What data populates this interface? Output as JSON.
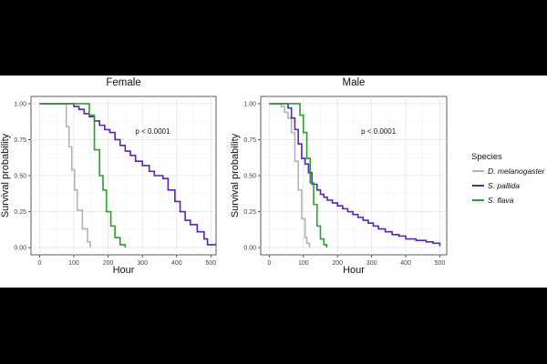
{
  "legend": {
    "title": "Species",
    "placement": "right",
    "entries": [
      {
        "label": "D. melanogaster",
        "color": "#b3b3b3"
      },
      {
        "label": "S. pallida",
        "color": "#5b23b5"
      },
      {
        "label": "S. flava",
        "color": "#2ca02c"
      }
    ]
  },
  "chart_data": [
    {
      "type": "line",
      "step": true,
      "title": "Female",
      "xlabel": "Hour",
      "ylabel": "Survival probability",
      "xlim": [
        -25,
        515
      ],
      "ylim": [
        -0.05,
        1.05
      ],
      "xticks": [
        0,
        100,
        200,
        300,
        400,
        500
      ],
      "yticks": [
        "0.00",
        "0.25",
        "0.50",
        "0.75",
        "1.00"
      ],
      "grid": true,
      "annotation": "p < 0.0001",
      "annotation_at": [
        330,
        0.79
      ],
      "series": [
        {
          "name": "D. melanogaster",
          "color": "#b3b3b3",
          "x": [
            0,
            70,
            78,
            86,
            94,
            102,
            110,
            125,
            140,
            148
          ],
          "y": [
            1.0,
            1.0,
            0.84,
            0.7,
            0.54,
            0.4,
            0.26,
            0.13,
            0.04,
            0.0
          ]
        },
        {
          "name": "S. pallida",
          "color": "#5b23b5",
          "x": [
            0,
            85,
            100,
            115,
            130,
            145,
            160,
            175,
            190,
            205,
            220,
            235,
            250,
            265,
            280,
            300,
            320,
            335,
            360,
            375,
            395,
            410,
            425,
            440,
            460,
            480,
            490,
            515
          ],
          "y": [
            1.0,
            1.0,
            0.98,
            0.96,
            0.93,
            0.91,
            0.88,
            0.85,
            0.82,
            0.8,
            0.75,
            0.71,
            0.67,
            0.64,
            0.6,
            0.57,
            0.53,
            0.5,
            0.48,
            0.4,
            0.32,
            0.25,
            0.19,
            0.16,
            0.11,
            0.06,
            0.02,
            0.02
          ]
        },
        {
          "name": "S. flava",
          "color": "#2ca02c",
          "x": [
            0,
            130,
            145,
            160,
            175,
            185,
            195,
            208,
            220,
            235,
            250
          ],
          "y": [
            1.0,
            1.0,
            0.92,
            0.68,
            0.5,
            0.4,
            0.25,
            0.15,
            0.07,
            0.02,
            0.0
          ]
        }
      ]
    },
    {
      "type": "line",
      "step": true,
      "title": "Male",
      "xlabel": "Hour",
      "ylabel": "Survival probability",
      "xlim": [
        -25,
        520
      ],
      "ylim": [
        -0.05,
        1.05
      ],
      "xticks": [
        0,
        100,
        200,
        300,
        400,
        500
      ],
      "yticks": [
        "0.00",
        "0.25",
        "0.50",
        "0.75",
        "1.00"
      ],
      "grid": true,
      "annotation": "p < 0.0001",
      "annotation_at": [
        320,
        0.79
      ],
      "series": [
        {
          "name": "D. melanogaster",
          "color": "#b3b3b3",
          "x": [
            0,
            35,
            45,
            55,
            65,
            75,
            85,
            95,
            105,
            110,
            118
          ],
          "y": [
            1.0,
            0.98,
            0.94,
            0.9,
            0.8,
            0.6,
            0.4,
            0.2,
            0.07,
            0.03,
            0.0
          ]
        },
        {
          "name": "S. pallida",
          "color": "#5b23b5",
          "x": [
            0,
            40,
            55,
            65,
            75,
            85,
            95,
            105,
            115,
            125,
            140,
            150,
            160,
            170,
            185,
            200,
            215,
            230,
            245,
            260,
            275,
            290,
            305,
            320,
            340,
            360,
            380,
            400,
            430,
            460,
            480,
            500
          ],
          "y": [
            1.0,
            1.0,
            0.97,
            0.9,
            0.82,
            0.72,
            0.62,
            0.58,
            0.52,
            0.44,
            0.4,
            0.37,
            0.35,
            0.33,
            0.31,
            0.29,
            0.27,
            0.25,
            0.23,
            0.21,
            0.19,
            0.17,
            0.15,
            0.13,
            0.11,
            0.09,
            0.08,
            0.06,
            0.05,
            0.04,
            0.03,
            0.01
          ]
        },
        {
          "name": "S. flava",
          "color": "#2ca02c",
          "x": [
            0,
            80,
            90,
            100,
            110,
            120,
            130,
            140,
            150,
            160,
            168
          ],
          "y": [
            1.0,
            1.0,
            0.92,
            0.8,
            0.62,
            0.45,
            0.3,
            0.15,
            0.06,
            0.02,
            0.0
          ]
        }
      ]
    }
  ]
}
